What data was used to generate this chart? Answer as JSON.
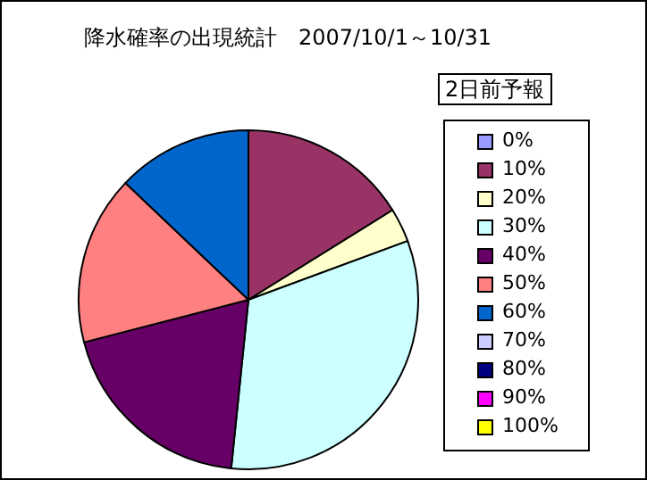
{
  "chart_data": {
    "type": "pie",
    "title": "降水確率の出現統計　2007/10/1～10/31",
    "legend_title": "2日前予報",
    "legend": "right",
    "categories": [
      "0%",
      "10%",
      "20%",
      "30%",
      "40%",
      "50%",
      "60%",
      "70%",
      "80%",
      "90%",
      "100%"
    ],
    "values": [
      0,
      16.13,
      3.23,
      32.26,
      19.35,
      16.13,
      12.9,
      0,
      0,
      0,
      0
    ],
    "colors": [
      "#9999ff",
      "#993366",
      "#ffffcc",
      "#ccffff",
      "#660066",
      "#ff8080",
      "#0066cc",
      "#ccccff",
      "#000080",
      "#ff00ff",
      "#ffff00"
    ]
  }
}
